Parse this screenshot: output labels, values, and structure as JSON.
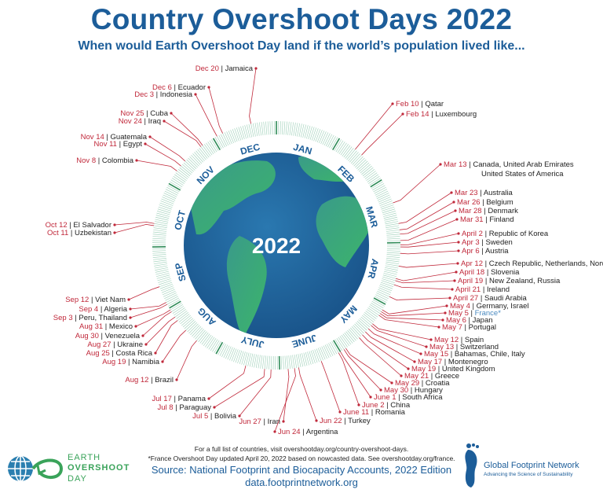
{
  "title": "Country Overshoot Days 2022",
  "subtitle": "When would Earth Overshoot Day land if the world’s population lived like...",
  "center_year": "2022",
  "months": [
    "JAN",
    "FEB",
    "MAR",
    "APR",
    "MAY",
    "JUNE",
    "JULY",
    "AUG",
    "SEP",
    "OCT",
    "NOV",
    "DEC"
  ],
  "colors": {
    "title": "#1c5d99",
    "date": "#c0283a",
    "tick": "#a8d5c0",
    "month_tick": "#2e8b57",
    "france": "#4a8ac0",
    "globe_ocean": "#1f5f9c",
    "globe_land": "#3aa36a"
  },
  "entries": [
    {
      "date": "Feb 10",
      "country": "Qatar"
    },
    {
      "date": "Feb 14",
      "country": "Luxembourg"
    },
    {
      "date": "Mar 13",
      "country": "Canada, United Arab Emirates",
      "country_line2": "United States of America"
    },
    {
      "date": "Mar 23",
      "country": "Australia"
    },
    {
      "date": "Mar 26",
      "country": "Belgium"
    },
    {
      "date": "Mar 28",
      "country": "Denmark"
    },
    {
      "date": "Mar 31",
      "country": "Finland"
    },
    {
      "date": "April 2",
      "country": "Republic of Korea"
    },
    {
      "date": "Apr 3",
      "country": "Sweden"
    },
    {
      "date": "Apr 6",
      "country": "Austria"
    },
    {
      "date": "Apr 12",
      "country": "Czech Republic, Netherlands, Norway"
    },
    {
      "date": "April 18",
      "country": "Slovenia"
    },
    {
      "date": "April 19",
      "country": "New Zealand, Russia"
    },
    {
      "date": "April 21",
      "country": "Ireland"
    },
    {
      "date": "April 27",
      "country": "Saudi Arabia"
    },
    {
      "date": "May 4",
      "country": "Germany, Israel"
    },
    {
      "date": "May 5",
      "country": "France*",
      "highlight": true
    },
    {
      "date": "May 6",
      "country": "Japan"
    },
    {
      "date": "May 7",
      "country": "Portugal"
    },
    {
      "date": "May 12",
      "country": "Spain"
    },
    {
      "date": "May 13",
      "country": "Switzerland"
    },
    {
      "date": "May 15",
      "country": "Bahamas, Chile, Italy"
    },
    {
      "date": "May 17",
      "country": "Montenegro"
    },
    {
      "date": "May 19",
      "country": "United Kingdom"
    },
    {
      "date": "May 21",
      "country": "Greece"
    },
    {
      "date": "May 29",
      "country": "Croatia"
    },
    {
      "date": "May 30",
      "country": "Hungary"
    },
    {
      "date": "June 1",
      "country": "South Africa"
    },
    {
      "date": "June 2",
      "country": "China"
    },
    {
      "date": "June 11",
      "country": "Romania"
    },
    {
      "date": "Jun 22",
      "country": "Turkey"
    },
    {
      "date": "Jun 24",
      "country": "Argentina"
    },
    {
      "date": "Jun 27",
      "country": "Iran"
    },
    {
      "date": "Jul 5",
      "country": "Bolivia"
    },
    {
      "date": "Jul 8",
      "country": "Paraguay"
    },
    {
      "date": "Jul 17",
      "country": "Panama"
    },
    {
      "date": "Aug 12",
      "country": "Brazil"
    },
    {
      "date": "Aug 19",
      "country": "Namibia"
    },
    {
      "date": "Aug 25",
      "country": "Costa Rica"
    },
    {
      "date": "Aug 27",
      "country": "Ukraine"
    },
    {
      "date": "Aug 30",
      "country": "Venezuela"
    },
    {
      "date": "Aug 31",
      "country": "Mexico"
    },
    {
      "date": "Sep 3",
      "country": "Peru, Thailand"
    },
    {
      "date": "Sep 4",
      "country": "Algeria"
    },
    {
      "date": "Sep 12",
      "country": "Viet Nam"
    },
    {
      "date": "Oct 11",
      "country": "Uzbekistan"
    },
    {
      "date": "Oct 12",
      "country": "El Salvador"
    },
    {
      "date": "Nov 8",
      "country": "Colombia"
    },
    {
      "date": "Nov 11",
      "country": "Egypt"
    },
    {
      "date": "Nov 14",
      "country": "Guatemala"
    },
    {
      "date": "Nov 24",
      "country": "Iraq"
    },
    {
      "date": "Nov 25",
      "country": "Cuba"
    },
    {
      "date": "Dec 3",
      "country": "Indonesia"
    },
    {
      "date": "Dec 6",
      "country": "Ecuador"
    },
    {
      "date": "Dec 20",
      "country": "Jamaica"
    }
  ],
  "footer": {
    "note1": "For a full list of countries, visit overshootday.org/country-overshoot-days.",
    "note2": "*France Overshoot Day updated April 20, 2022 based on nowcasted data. See overshootday.org/france.",
    "source": "Source: National Footprint and Biocapacity Accounts, 2022 Edition",
    "url": "data.footprintnetwork.org"
  },
  "logos": {
    "eod": [
      "EARTH",
      "OVERSHOOT",
      "DAY"
    ],
    "gfn_name": "Global Footprint Network",
    "gfn_tagline": "Advancing the Science of Sustainability"
  }
}
